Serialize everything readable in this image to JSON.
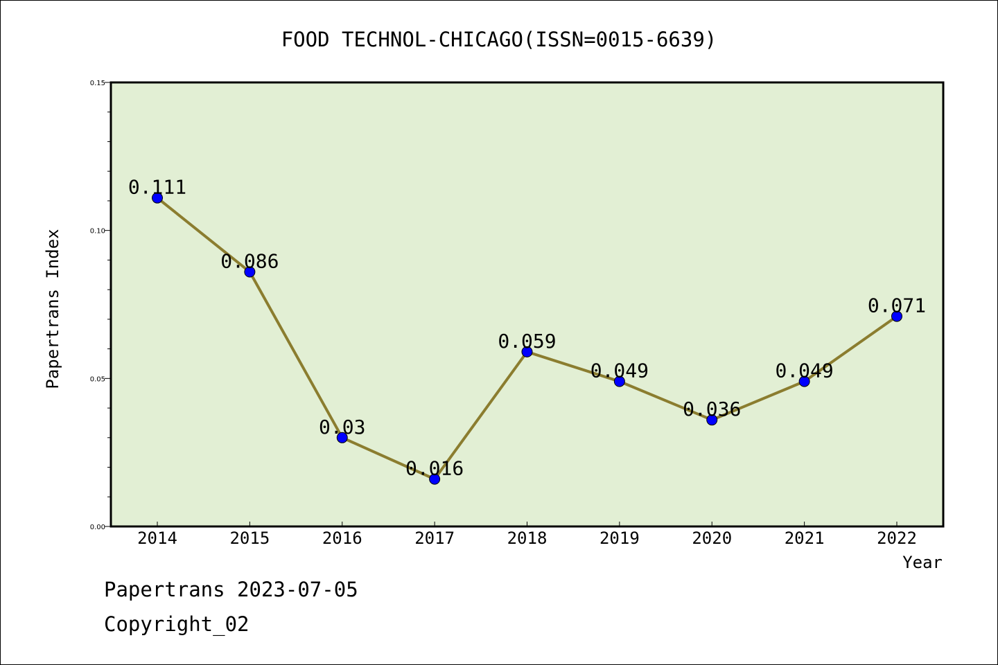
{
  "chart_data": {
    "type": "line",
    "title": "FOOD TECHNOL-CHICAGO(ISSN=0015-6639)",
    "xlabel": "Year",
    "ylabel": "Papertrans Index",
    "categories": [
      "2014",
      "2015",
      "2016",
      "2017",
      "2018",
      "2019",
      "2020",
      "2021",
      "2022"
    ],
    "series": [
      {
        "values": [
          0.111,
          0.086,
          0.03,
          0.016,
          0.059,
          0.049,
          0.036,
          0.049,
          0.071
        ],
        "labels": [
          "0.111",
          "0.086",
          "0.03",
          "0.016",
          "0.059",
          "0.049",
          "0.036",
          "0.049",
          "0.071"
        ]
      }
    ],
    "ylim": [
      0.0,
      0.15
    ],
    "yticks": [
      0.0,
      0.05,
      0.1,
      0.15
    ],
    "ytick_labels": [
      "0.00",
      "0.05",
      "0.10",
      "0.15"
    ],
    "grid": false,
    "legend": "none",
    "colors": {
      "plot_background": "#e2efd4",
      "line": "#8b7d2f",
      "marker": "#0000ff"
    }
  },
  "footer": {
    "line1": "Papertrans 2023-07-05",
    "line2": "Copyright_02"
  }
}
